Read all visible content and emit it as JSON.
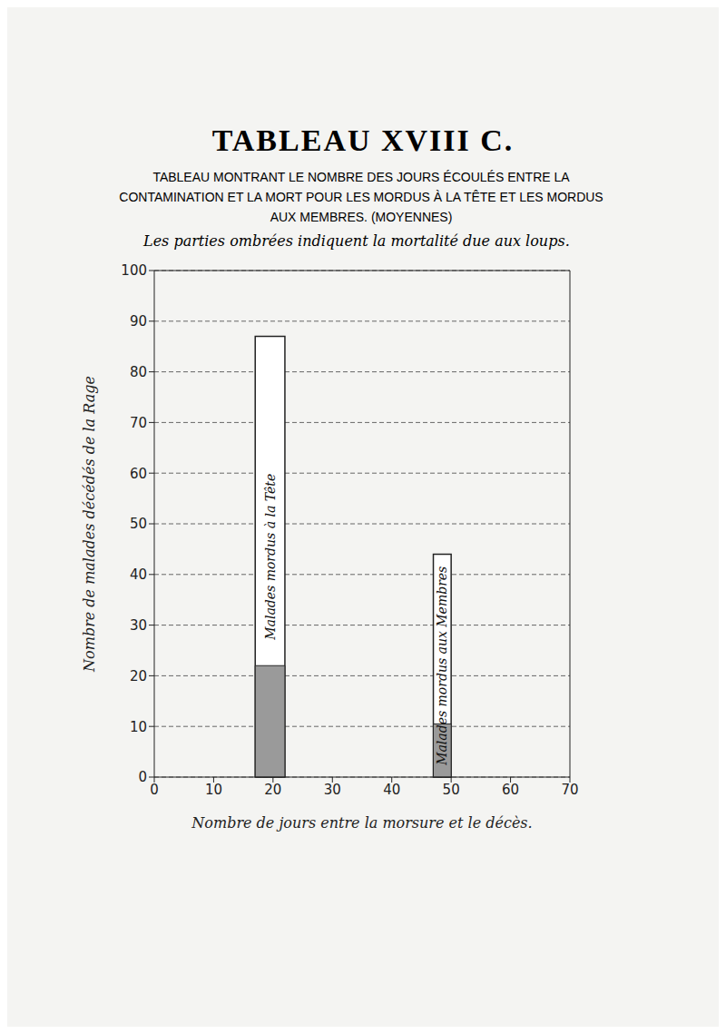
{
  "chart_data": {
    "type": "bar",
    "title": "TABLEAU XVIII C.",
    "subtitle": "TABLEAU MONTRANT LE NOMBRE DES JOURS ÉCOULÉS ENTRE LA CONTAMINATION ET LA MORT POUR LES MORDUS À LA TÊTE ET LES MORDUS AUX MEMBRES. (MOYENNES)",
    "note": "Les parties ombrées indiquent la mortalité due aux loups.",
    "x_label": "Nombre de jours entre la morsure et le décès.",
    "y_label": "Nombre de malades décédés de la Rage",
    "xlim": [
      0,
      70
    ],
    "xticks": [
      0,
      10,
      20,
      30,
      40,
      50,
      60,
      70
    ],
    "ylim": [
      0,
      100
    ],
    "yticks": [
      0,
      10,
      20,
      30,
      40,
      50,
      60,
      70,
      80,
      90,
      100
    ],
    "grid": true,
    "series": [
      {
        "name": "Malades mordus à la Tête",
        "x_range": [
          17,
          22
        ],
        "value": 87,
        "wolf_mortality": 22,
        "color": "#ffffff",
        "shade_color": "#9a9a9a"
      },
      {
        "name": "Malades mordus aux Membres",
        "x_range": [
          47,
          50
        ],
        "value": 44,
        "wolf_mortality": 10.5,
        "color": "#ffffff",
        "shade_color": "#9a9a9a"
      }
    ]
  }
}
